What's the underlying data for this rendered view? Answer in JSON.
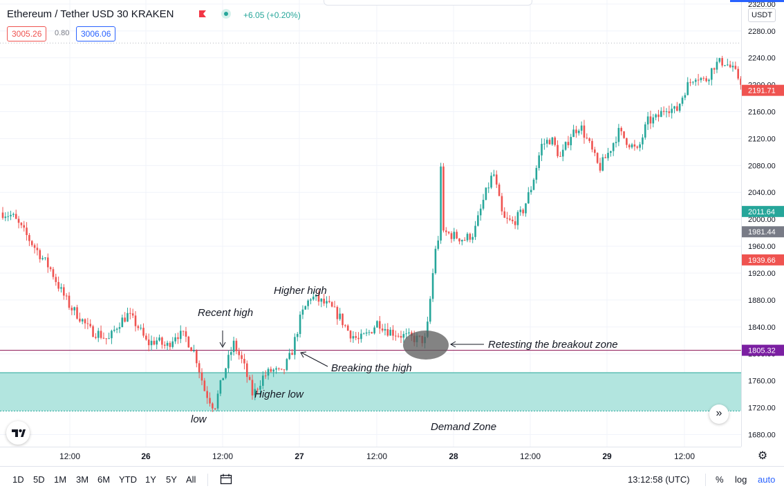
{
  "legend": {
    "title": "Ethereum / Tether USD  30  KRAKEN",
    "change": "+6.05 (+0.20%)",
    "bid": "3005.26",
    "spread": "0.80",
    "ask": "3006.06"
  },
  "currency": "USDT",
  "colors": {
    "up": "#26a69a",
    "down": "#ef5350",
    "demand_zone": "#b2e5df",
    "breakout_line": "#880e4f",
    "accent": "#2962ff"
  },
  "icons": {
    "flag": "flag-icon",
    "dot": "status-dot-icon",
    "logo": "tradingview-logo-icon",
    "scroll": "scroll-right-icon",
    "settings": "gear-icon",
    "calendar": "calendar-icon"
  },
  "price_scale": {
    "ticks": [
      "2320.00",
      "2280.00",
      "2240.00",
      "2200.00",
      "2160.00",
      "2120.00",
      "2080.00",
      "2040.00",
      "2000.00",
      "1960.00",
      "1920.00",
      "1880.00",
      "1840.00",
      "1800.00",
      "1760.00",
      "1720.00",
      "1680.00"
    ],
    "badges": [
      {
        "label": "2191.71",
        "price": 2191.71,
        "color": "#ef5350"
      },
      {
        "label": "2011.64",
        "price": 2011.64,
        "color": "#26a69a"
      },
      {
        "label": "1981.44",
        "price": 1981.44,
        "color": "#787b86"
      },
      {
        "label": "1939.66",
        "price": 1939.66,
        "color": "#ef5350"
      },
      {
        "label": "1805.32",
        "price": 1805.32,
        "color": "#7b1fa2"
      }
    ]
  },
  "time_scale": {
    "labels": [
      "12:00",
      "26",
      "12:00",
      "27",
      "12:00",
      "28",
      "12:00",
      "29",
      "12:00"
    ]
  },
  "annotations": [
    {
      "text": "Recent high",
      "price": 1856,
      "t": 23.0
    },
    {
      "text": "Higher high",
      "price": 1887,
      "t": 31.5
    },
    {
      "text": "Breaking the high",
      "price": 1788,
      "t": 36.0
    },
    {
      "text": "Higher low",
      "price": 1740,
      "t": 26.5
    },
    {
      "text": "low",
      "price": 1706,
      "t": 20.5
    },
    {
      "text": "Retesting the breakout zone",
      "price": 1806,
      "t": 51.5
    },
    {
      "text": "Demand Zone",
      "price": 1697,
      "t": 45.0
    }
  ],
  "bottom_bar": {
    "ranges": [
      "1D",
      "5D",
      "1M",
      "3M",
      "6M",
      "YTD",
      "1Y",
      "5Y",
      "All"
    ],
    "clock": "13:12:58 (UTC)",
    "percent": "%",
    "log": "log",
    "auto": "auto"
  },
  "chart_data": {
    "type": "candlestick",
    "title": "Ethereum / Tether USD  30  KRAKEN",
    "ylim": [
      1662,
      2326
    ],
    "ylabel": "USDT",
    "x_tick_labels": [
      "12:00",
      "26",
      "12:00",
      "27",
      "12:00",
      "28",
      "12:00",
      "29",
      "12:00"
    ],
    "close_path": [
      2010,
      2005,
      1985,
      1965,
      1945,
      1925,
      1895,
      1870,
      1855,
      1835,
      1830,
      1820,
      1845,
      1858,
      1842,
      1815,
      1820,
      1810,
      1830,
      1825,
      1800,
      1745,
      1720,
      1772,
      1815,
      1785,
      1738,
      1765,
      1776,
      1770,
      1800,
      1856,
      1885,
      1878,
      1870,
      1855,
      1832,
      1820,
      1830,
      1848,
      1835,
      1830,
      1825,
      1822,
      1820,
      1960,
      1980,
      1975,
      1970,
      1980,
      2030,
      2070,
      2000,
      1995,
      2010,
      2050,
      2110,
      2120,
      2090,
      2125,
      2140,
      2110,
      2075,
      2100,
      2130,
      2115,
      2100,
      2145,
      2150,
      2168,
      2160,
      2195,
      2215,
      2205,
      2230,
      2235,
      2220,
      2200
    ],
    "zones": {
      "demand_zone": [
        1715,
        1772
      ],
      "breakout_level": 1805.32,
      "last_price": 2191.71
    }
  }
}
